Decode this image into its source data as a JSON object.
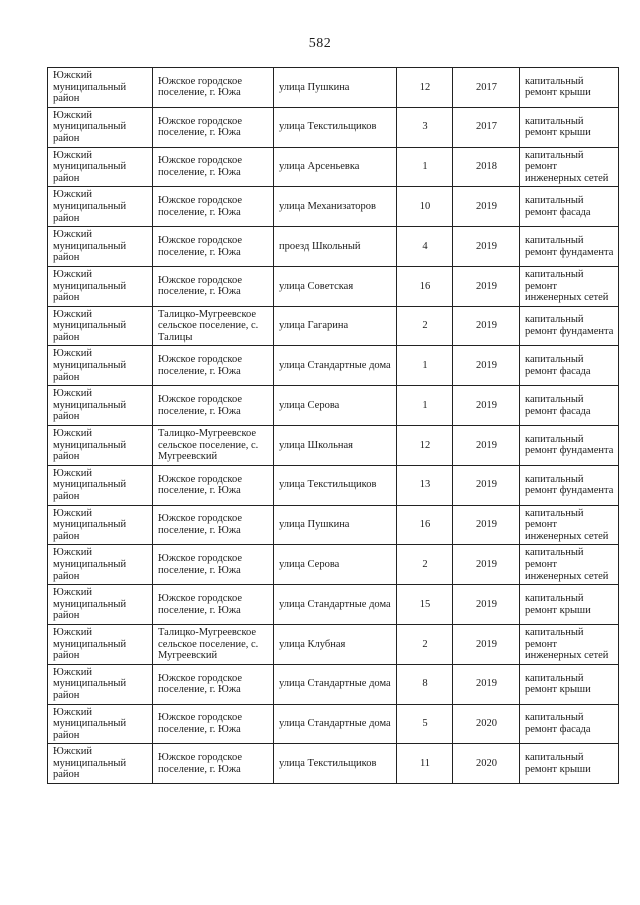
{
  "page": {
    "number": "582"
  },
  "table": {
    "columns": [
      {
        "key": "district",
        "name": "district",
        "align": "left",
        "width": 105
      },
      {
        "key": "settlement",
        "name": "settlement",
        "align": "left",
        "width": 121
      },
      {
        "key": "street",
        "name": "street",
        "align": "left",
        "width": 123
      },
      {
        "key": "house",
        "name": "house-number",
        "align": "center",
        "width": 56
      },
      {
        "key": "year",
        "name": "year",
        "align": "center",
        "width": 67
      },
      {
        "key": "work",
        "name": "repair-type",
        "align": "left",
        "width": 99
      }
    ],
    "rows": [
      {
        "district": "Южский муниципальный район",
        "settlement": "Южское городское поселение, г. Южа",
        "street": "улица Пушкина",
        "house": "12",
        "year": "2017",
        "work": "капитальный ремонт крыши"
      },
      {
        "district": "Южский муниципальный район",
        "settlement": "Южское городское поселение, г. Южа",
        "street": "улица Текстильщиков",
        "house": "3",
        "year": "2017",
        "work": "капитальный ремонт крыши"
      },
      {
        "district": "Южский муниципальный район",
        "settlement": "Южское городское поселение, г. Южа",
        "street": "улица Арсеньевка",
        "house": "1",
        "year": "2018",
        "work": "капитальный ремонт инженерных сетей"
      },
      {
        "district": "Южский муниципальный район",
        "settlement": "Южское городское поселение, г. Южа",
        "street": "улица Механизаторов",
        "house": "10",
        "year": "2019",
        "work": "капитальный ремонт фасада"
      },
      {
        "district": "Южский муниципальный район",
        "settlement": "Южское городское поселение, г. Южа",
        "street": "проезд Школьный",
        "house": "4",
        "year": "2019",
        "work": "капитальный ремонт фундамента"
      },
      {
        "district": "Южский муниципальный район",
        "settlement": "Южское городское поселение, г. Южа",
        "street": "улица Советская",
        "house": "16",
        "year": "2019",
        "work": "капитальный ремонт инженерных сетей"
      },
      {
        "district": "Южский муниципальный район",
        "settlement": "Талицко-Мугреевское сельское поселение, с. Талицы",
        "street": "улица Гагарина",
        "house": "2",
        "year": "2019",
        "work": "капитальный ремонт фундамента"
      },
      {
        "district": "Южский муниципальный район",
        "settlement": "Южское городское поселение, г. Южа",
        "street": "улица Стандартные дома",
        "house": "1",
        "year": "2019",
        "work": "капитальный ремонт фасада"
      },
      {
        "district": "Южский муниципальный район",
        "settlement": "Южское городское поселение, г. Южа",
        "street": "улица Серова",
        "house": "1",
        "year": "2019",
        "work": "капитальный ремонт фасада"
      },
      {
        "district": "Южский муниципальный район",
        "settlement": "Талицко-Мугреевское сельское поселение, с. Мугреевский",
        "street": "улица Школьная",
        "house": "12",
        "year": "2019",
        "work": "капитальный ремонт фундамента"
      },
      {
        "district": "Южский муниципальный район",
        "settlement": "Южское городское поселение, г. Южа",
        "street": "улица Текстильщиков",
        "house": "13",
        "year": "2019",
        "work": "капитальный ремонт фундамента"
      },
      {
        "district": "Южский муниципальный район",
        "settlement": "Южское городское поселение, г. Южа",
        "street": "улица Пушкина",
        "house": "16",
        "year": "2019",
        "work": "капитальный ремонт инженерных сетей"
      },
      {
        "district": "Южский муниципальный район",
        "settlement": "Южское городское поселение, г. Южа",
        "street": "улица Серова",
        "house": "2",
        "year": "2019",
        "work": "капитальный ремонт инженерных сетей"
      },
      {
        "district": "Южский муниципальный район",
        "settlement": "Южское городское поселение, г. Южа",
        "street": "улица Стандартные дома",
        "house": "15",
        "year": "2019",
        "work": "капитальный ремонт крыши"
      },
      {
        "district": "Южский муниципальный район",
        "settlement": "Талицко-Мугреевское сельское поселение, с. Мугреевский",
        "street": "улица Клубная",
        "house": "2",
        "year": "2019",
        "work": "капитальный ремонт инженерных сетей"
      },
      {
        "district": "Южский муниципальный район",
        "settlement": "Южское городское поселение, г. Южа",
        "street": "улица Стандартные дома",
        "house": "8",
        "year": "2019",
        "work": "капитальный ремонт крыши"
      },
      {
        "district": "Южский муниципальный район",
        "settlement": "Южское городское поселение, г. Южа",
        "street": "улица Стандартные дома",
        "house": "5",
        "year": "2020",
        "work": "капитальный ремонт фасада"
      },
      {
        "district": "Южский муниципальный район",
        "settlement": "Южское городское поселение, г. Южа",
        "street": "улица Текстильщиков",
        "house": "11",
        "year": "2020",
        "work": "капитальный ремонт крыши"
      }
    ]
  }
}
